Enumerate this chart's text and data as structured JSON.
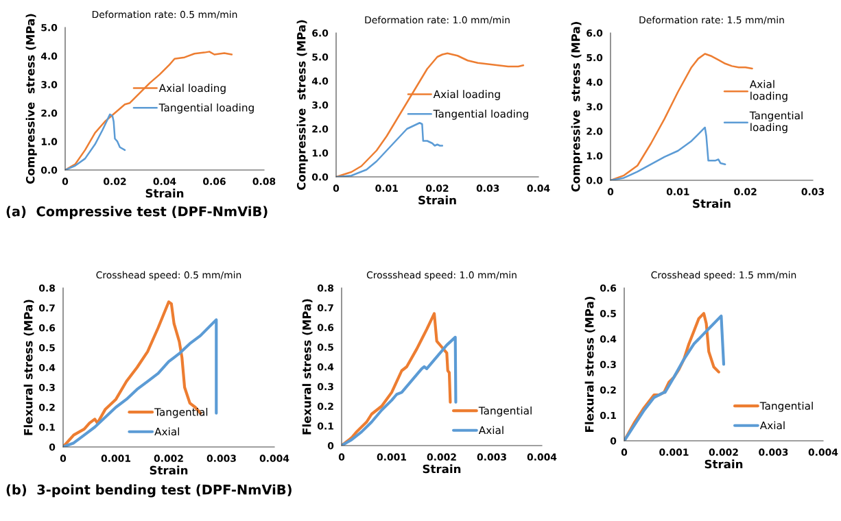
{
  "chart_data": [
    {
      "type": "line",
      "title": "Deformation rate: 0.5 mm/min",
      "xlabel": "Strain",
      "ylabel": "Compressive  stress (MPa)",
      "xlim": [
        0,
        0.08
      ],
      "xticks": [
        0,
        0.02,
        0.04,
        0.06,
        0.08
      ],
      "ylim": [
        0,
        5
      ],
      "yticks": [
        {
          "value": 0,
          "label": "0.0"
        },
        {
          "value": 1,
          "label": "1.0"
        },
        {
          "value": 2,
          "label": "2.0"
        },
        {
          "value": 3,
          "label": "3.0"
        },
        {
          "value": 4,
          "label": "4.0"
        },
        {
          "value": 5,
          "label": "5.0"
        }
      ],
      "grid": false,
      "legend": "right",
      "annotations": [
        "(a)  Compressive test (DPF-NmViB)"
      ],
      "series": [
        {
          "name": "Axial loading",
          "color": "#ed7d31",
          "x": [
            0,
            0.004,
            0.008,
            0.012,
            0.016,
            0.02,
            0.024,
            0.026,
            0.03,
            0.034,
            0.038,
            0.042,
            0.044,
            0.048,
            0.052,
            0.056,
            0.058,
            0.06,
            0.064,
            0.067
          ],
          "values": [
            0,
            0.2,
            0.7,
            1.3,
            1.7,
            2.0,
            2.3,
            2.35,
            2.7,
            3.05,
            3.35,
            3.7,
            3.9,
            3.95,
            4.08,
            4.12,
            4.15,
            4.05,
            4.1,
            4.05
          ]
        },
        {
          "name": "Tangential loading",
          "color": "#5b9bd5",
          "x": [
            0,
            0.004,
            0.008,
            0.012,
            0.015,
            0.018,
            0.019,
            0.0195,
            0.02,
            0.021,
            0.022,
            0.024
          ],
          "values": [
            0,
            0.15,
            0.4,
            0.9,
            1.4,
            1.95,
            1.9,
            1.7,
            1.1,
            1.0,
            0.8,
            0.7
          ]
        }
      ]
    },
    {
      "type": "line",
      "title": "Deformation rate: 1.0 mm/min",
      "xlabel": "Strain",
      "ylabel": "Compressive  stress (MPa)",
      "xlim": [
        0,
        0.04
      ],
      "xticks": [
        0,
        0.01,
        0.02,
        0.03,
        0.04
      ],
      "ylim": [
        0,
        6
      ],
      "yticks": [
        {
          "value": 0,
          "label": "0.0"
        },
        {
          "value": 1,
          "label": "1.0"
        },
        {
          "value": 2,
          "label": "2.0"
        },
        {
          "value": 3,
          "label": "3.0"
        },
        {
          "value": 4,
          "label": "4.0"
        },
        {
          "value": 5,
          "label": "5.0"
        },
        {
          "value": 6,
          "label": "6.0"
        }
      ],
      "grid": false,
      "legend": "right",
      "series": [
        {
          "name": "Axial loading",
          "color": "#ed7d31",
          "x": [
            0,
            0.003,
            0.005,
            0.008,
            0.01,
            0.012,
            0.014,
            0.016,
            0.018,
            0.02,
            0.021,
            0.022,
            0.024,
            0.026,
            0.028,
            0.03,
            0.032,
            0.034,
            0.036,
            0.037
          ],
          "values": [
            0,
            0.2,
            0.45,
            1.1,
            1.7,
            2.4,
            3.1,
            3.8,
            4.5,
            5.0,
            5.1,
            5.15,
            5.05,
            4.85,
            4.75,
            4.7,
            4.65,
            4.6,
            4.6,
            4.65
          ]
        },
        {
          "name": "Tangential loading",
          "color": "#5b9bd5",
          "x": [
            0,
            0.003,
            0.006,
            0.008,
            0.01,
            0.012,
            0.014,
            0.016,
            0.0165,
            0.017,
            0.0172,
            0.018,
            0.019,
            0.0195,
            0.02,
            0.0205,
            0.021
          ],
          "values": [
            0,
            0.05,
            0.3,
            0.65,
            1.1,
            1.55,
            2.0,
            2.2,
            2.25,
            2.2,
            1.5,
            1.5,
            1.4,
            1.3,
            1.35,
            1.3,
            1.3
          ]
        }
      ]
    },
    {
      "type": "line",
      "title": "Deformation rate: 1.5 mm/min",
      "xlabel": "Strain",
      "ylabel": "Compressive  stress (MPa)",
      "xlim": [
        0,
        0.03
      ],
      "xticks": [
        0,
        0.01,
        0.02,
        0.03
      ],
      "ylim": [
        0,
        6
      ],
      "yticks": [
        {
          "value": 0,
          "label": "0.0"
        },
        {
          "value": 1,
          "label": "1.0"
        },
        {
          "value": 2,
          "label": "2.0"
        },
        {
          "value": 3,
          "label": "3.0"
        },
        {
          "value": 4,
          "label": "4.0"
        },
        {
          "value": 5,
          "label": "5.0"
        },
        {
          "value": 6,
          "label": "6.0"
        }
      ],
      "grid": false,
      "legend": "right",
      "series": [
        {
          "name": "Axial\nloading",
          "color": "#ed7d31",
          "x": [
            0,
            0.002,
            0.004,
            0.006,
            0.008,
            0.01,
            0.012,
            0.013,
            0.014,
            0.015,
            0.016,
            0.017,
            0.018,
            0.019,
            0.02,
            0.021
          ],
          "values": [
            0,
            0.2,
            0.6,
            1.5,
            2.5,
            3.6,
            4.6,
            4.95,
            5.15,
            5.05,
            4.9,
            4.75,
            4.65,
            4.6,
            4.6,
            4.55
          ]
        },
        {
          "name": "Tangential\nloading",
          "color": "#5b9bd5",
          "x": [
            0,
            0.002,
            0.004,
            0.006,
            0.008,
            0.01,
            0.012,
            0.014,
            0.0142,
            0.0145,
            0.015,
            0.0155,
            0.016,
            0.0163,
            0.017
          ],
          "values": [
            0,
            0.1,
            0.35,
            0.65,
            0.95,
            1.2,
            1.6,
            2.15,
            1.8,
            0.8,
            0.8,
            0.8,
            0.85,
            0.7,
            0.65
          ]
        }
      ]
    },
    {
      "type": "line",
      "title": "Crosshead speed: 0.5 mm/min",
      "xlabel": "Strain",
      "ylabel": "Flexural stress (MPa)",
      "xlim": [
        0,
        0.004
      ],
      "xticks": [
        0,
        0.001,
        0.002,
        0.003,
        0.004
      ],
      "ylim": [
        0,
        0.8
      ],
      "yticks": [
        0,
        0.1,
        0.2,
        0.3,
        0.4,
        0.5,
        0.6,
        0.7,
        0.8
      ],
      "grid": false,
      "legend": "bottom",
      "annotations": [
        "(b)  3-point bending test (DPF-NmViB)"
      ],
      "series": [
        {
          "name": "Tangential",
          "color": "#ed7d31",
          "x": [
            0,
            0.0002,
            0.0004,
            0.0005,
            0.0006,
            0.00065,
            0.0008,
            0.001,
            0.0012,
            0.0014,
            0.0016,
            0.0018,
            0.002,
            0.00205,
            0.0021,
            0.0022,
            0.00225,
            0.0023,
            0.0024,
            0.0025,
            0.0026
          ],
          "values": [
            0,
            0.06,
            0.09,
            0.12,
            0.14,
            0.12,
            0.19,
            0.24,
            0.33,
            0.4,
            0.48,
            0.6,
            0.73,
            0.72,
            0.62,
            0.53,
            0.45,
            0.3,
            0.22,
            0.2,
            0.17
          ]
        },
        {
          "name": "Axial",
          "color": "#5b9bd5",
          "x": [
            0,
            0.0002,
            0.0004,
            0.0006,
            0.0008,
            0.001,
            0.0012,
            0.0014,
            0.0016,
            0.0018,
            0.002,
            0.0022,
            0.0024,
            0.0026,
            0.0029,
            0.0029
          ],
          "values": [
            0,
            0.02,
            0.06,
            0.1,
            0.15,
            0.2,
            0.24,
            0.29,
            0.33,
            0.37,
            0.43,
            0.47,
            0.52,
            0.56,
            0.64,
            0.17
          ]
        }
      ]
    },
    {
      "type": "line",
      "title": "Crossshead speed: 1.0 mm/min",
      "xlabel": "Strain",
      "ylabel": "Flexural stress (MPa)",
      "xlim": [
        0,
        0.004
      ],
      "xticks": [
        0,
        0.001,
        0.002,
        0.003,
        0.004
      ],
      "ylim": [
        0,
        0.8
      ],
      "yticks": [
        0,
        0.1,
        0.2,
        0.3,
        0.4,
        0.5,
        0.6,
        0.7,
        0.8
      ],
      "grid": false,
      "legend": "bottom right",
      "series": [
        {
          "name": "Tangential",
          "color": "#ed7d31",
          "x": [
            0,
            0.0002,
            0.0003,
            0.0005,
            0.0006,
            0.0008,
            0.001,
            0.0012,
            0.0013,
            0.0015,
            0.0016,
            0.0017,
            0.00185,
            0.0019,
            0.002,
            0.0021,
            0.00212,
            0.00215,
            0.00217
          ],
          "values": [
            0,
            0.04,
            0.07,
            0.12,
            0.16,
            0.2,
            0.27,
            0.38,
            0.4,
            0.49,
            0.54,
            0.59,
            0.67,
            0.53,
            0.5,
            0.47,
            0.38,
            0.37,
            0.22
          ]
        },
        {
          "name": "Axial",
          "color": "#5b9bd5",
          "x": [
            0,
            0.0002,
            0.0004,
            0.0006,
            0.0008,
            0.001,
            0.0011,
            0.0012,
            0.0014,
            0.0016,
            0.00165,
            0.0017,
            0.0019,
            0.0021,
            0.00227,
            0.00228
          ],
          "values": [
            0,
            0.03,
            0.07,
            0.12,
            0.18,
            0.23,
            0.26,
            0.27,
            0.33,
            0.39,
            0.4,
            0.39,
            0.45,
            0.51,
            0.55,
            0.22
          ]
        }
      ]
    },
    {
      "type": "line",
      "title": "Crosshead speed: 1.5 mm/min",
      "xlabel": "Strain",
      "ylabel": "Flexural stress (MPa)",
      "xlim": [
        0,
        0.004
      ],
      "xticks": [
        0,
        0.001,
        0.002,
        0.003,
        0.004
      ],
      "ylim": [
        0,
        0.6
      ],
      "yticks": [
        0,
        0.1,
        0.2,
        0.3,
        0.4,
        0.5,
        0.6
      ],
      "grid": false,
      "legend": "bottom right",
      "series": [
        {
          "name": "Tangential",
          "color": "#ed7d31",
          "x": [
            0,
            0.0002,
            0.0004,
            0.0006,
            0.0007,
            0.0008,
            0.0009,
            0.001,
            0.0011,
            0.0012,
            0.0013,
            0.0014,
            0.0015,
            0.0016,
            0.00165,
            0.0017,
            0.0018,
            0.0019
          ],
          "values": [
            0,
            0.07,
            0.13,
            0.18,
            0.18,
            0.19,
            0.23,
            0.25,
            0.28,
            0.32,
            0.38,
            0.43,
            0.48,
            0.5,
            0.46,
            0.35,
            0.29,
            0.27
          ]
        },
        {
          "name": "Axial",
          "color": "#5b9bd5",
          "x": [
            0,
            0.0002,
            0.0004,
            0.0006,
            0.0008,
            0.00082,
            0.001,
            0.0012,
            0.0014,
            0.0016,
            0.0017,
            0.00195,
            0.002
          ],
          "values": [
            0,
            0.06,
            0.12,
            0.17,
            0.19,
            0.19,
            0.25,
            0.32,
            0.38,
            0.42,
            0.44,
            0.49,
            0.3
          ]
        }
      ]
    }
  ]
}
